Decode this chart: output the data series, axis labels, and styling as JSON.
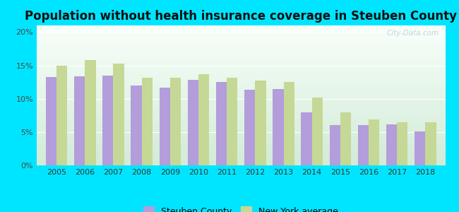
{
  "title": "Population without health insurance coverage in Steuben County",
  "years": [
    2005,
    2006,
    2007,
    2008,
    2009,
    2010,
    2011,
    2012,
    2013,
    2014,
    2015,
    2016,
    2017,
    2018
  ],
  "steuben": [
    13.3,
    13.4,
    13.5,
    12.0,
    11.7,
    12.8,
    12.5,
    11.3,
    11.5,
    8.0,
    6.0,
    6.0,
    6.2,
    5.1
  ],
  "ny_avg": [
    15.0,
    15.8,
    15.3,
    13.1,
    13.2,
    13.7,
    13.2,
    12.7,
    12.5,
    10.2,
    8.0,
    6.9,
    6.5,
    6.5
  ],
  "steuben_color": "#b39ddb",
  "ny_color": "#c5d896",
  "bg_outer": "#00e5ff",
  "ylim": [
    0,
    21
  ],
  "yticks": [
    0,
    5,
    10,
    15,
    20
  ],
  "ytick_labels": [
    "0%",
    "5%",
    "10%",
    "15%",
    "20%"
  ],
  "bar_width": 0.38,
  "legend_steuben": "Steuben County",
  "legend_ny": "New York average",
  "watermark": "City-Data.com",
  "title_fontsize": 12,
  "tick_fontsize": 8
}
